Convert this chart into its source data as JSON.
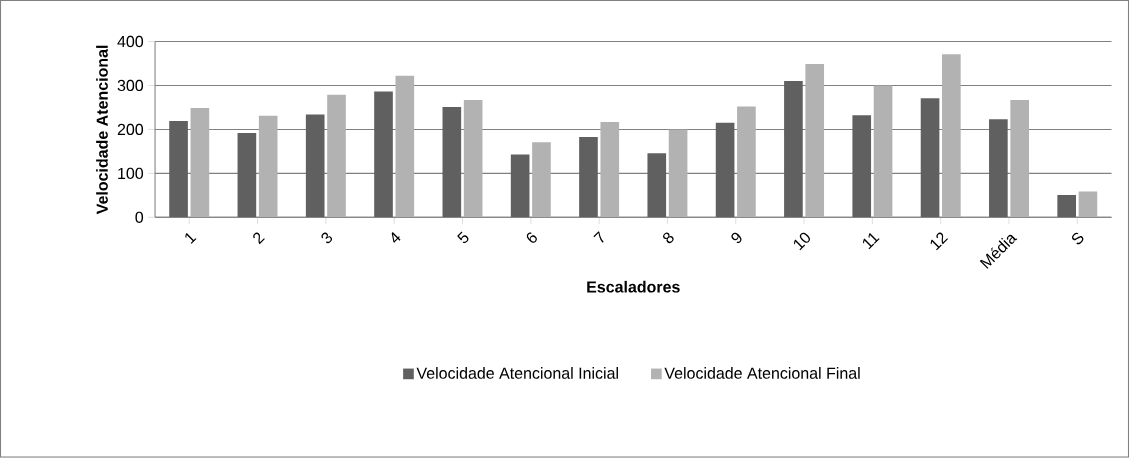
{
  "chart_data": {
    "type": "bar",
    "xlabel": "Escaladores",
    "ylabel": "Velocidade Atencional",
    "categories": [
      "1",
      "2",
      "3",
      "4",
      "5",
      "6",
      "7",
      "8",
      "9",
      "10",
      "11",
      "12",
      "Média",
      "S"
    ],
    "series": [
      {
        "name": "Velocidade Atencional Inicial",
        "color": "#606060",
        "values": [
          219,
          192,
          234,
          286,
          251,
          143,
          183,
          146,
          215,
          310,
          232,
          271,
          223,
          51
        ]
      },
      {
        "name": "Velocidade Atencional Final",
        "color": "#b2b2b2",
        "values": [
          249,
          231,
          279,
          322,
          267,
          171,
          217,
          200,
          252,
          349,
          300,
          371,
          267,
          59
        ]
      }
    ],
    "ylim": [
      0,
      400
    ],
    "yticks": [
      0,
      100,
      200,
      300,
      400
    ],
    "grid": "y",
    "legend": "bottom"
  }
}
